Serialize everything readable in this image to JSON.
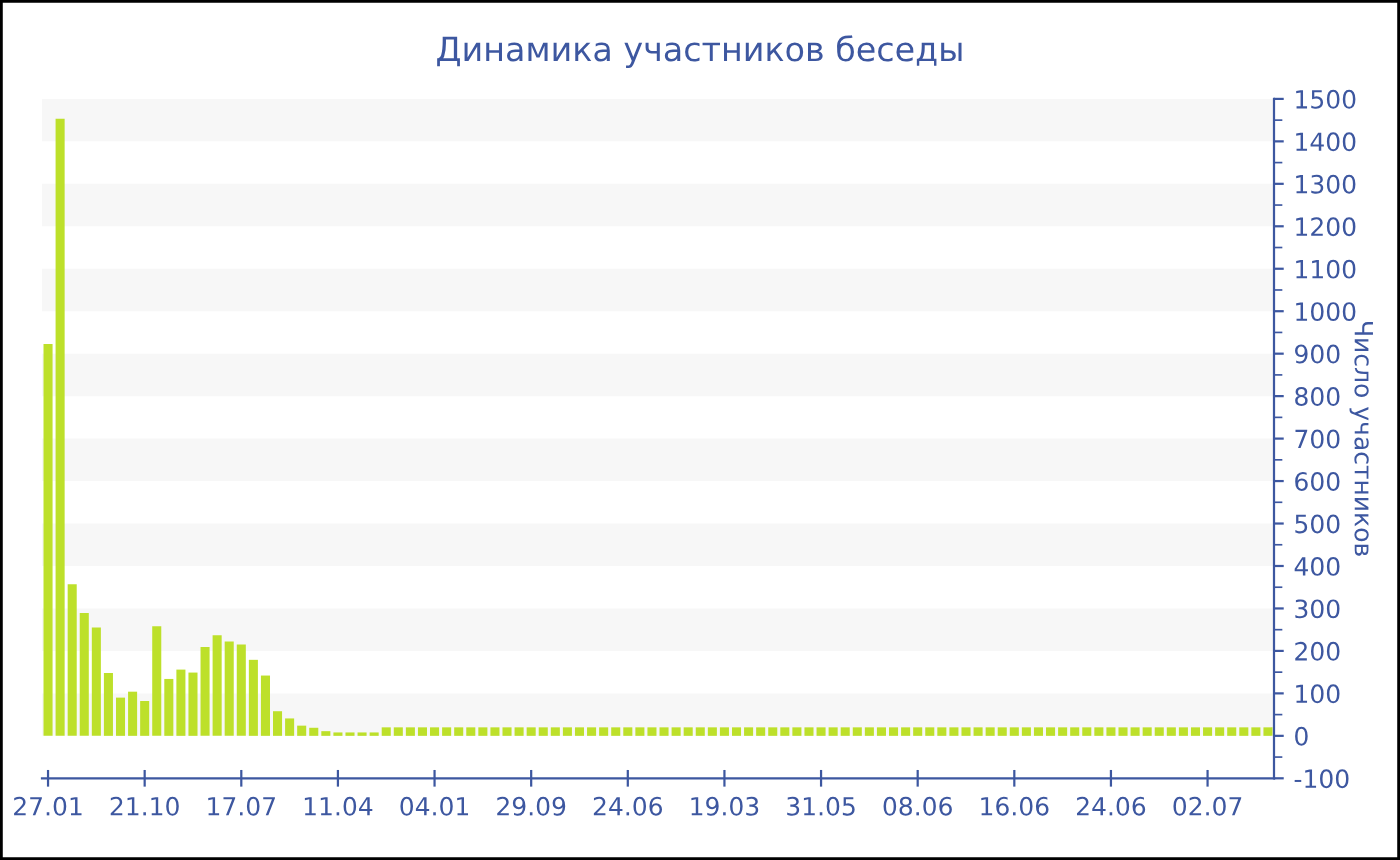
{
  "chart_data": {
    "type": "bar",
    "title": "Динамика участников беседы",
    "ylabel": "Число участников",
    "categories": [
      "27.01",
      null,
      null,
      null,
      null,
      null,
      null,
      null,
      "21.10",
      null,
      null,
      null,
      null,
      null,
      null,
      null,
      "17.07",
      null,
      null,
      null,
      null,
      null,
      null,
      null,
      "11.04",
      null,
      null,
      null,
      null,
      null,
      null,
      null,
      "04.01",
      null,
      null,
      null,
      null,
      null,
      null,
      null,
      "29.09",
      null,
      null,
      null,
      null,
      null,
      null,
      null,
      "24.06",
      null,
      null,
      null,
      null,
      null,
      null,
      null,
      "19.03",
      null,
      null,
      null,
      null,
      null,
      null,
      null,
      "31.05",
      null,
      null,
      null,
      null,
      null,
      null,
      null,
      "08.06",
      null,
      null,
      null,
      null,
      null,
      null,
      null,
      "16.06",
      null,
      null,
      null,
      null,
      null,
      null,
      null,
      "24.06",
      null,
      null,
      null,
      null,
      null,
      null,
      null,
      "02.07",
      null,
      null,
      null,
      null,
      null
    ],
    "values": [
      923,
      1453,
      357,
      289,
      255,
      148,
      90,
      104,
      82,
      258,
      134,
      156,
      149,
      209,
      237,
      222,
      215,
      179,
      142,
      58,
      41,
      24,
      19,
      11,
      8,
      8,
      8,
      8,
      20,
      20,
      20,
      20,
      20,
      20,
      20,
      20,
      20,
      20,
      20,
      20,
      20,
      20,
      20,
      20,
      20,
      20,
      20,
      20,
      20,
      20,
      20,
      20,
      20,
      20,
      20,
      20,
      20,
      20,
      20,
      20,
      20,
      20,
      20,
      20,
      20,
      20,
      20,
      20,
      20,
      20,
      20,
      20,
      20,
      20,
      20,
      20,
      20,
      20,
      20,
      20,
      20,
      20,
      20,
      20,
      20,
      20,
      20,
      20,
      20,
      20,
      20,
      20,
      20,
      20,
      20,
      20,
      20,
      20,
      20,
      20,
      20,
      20
    ],
    "color": "#bde02a",
    "ylim": [
      -100,
      1500
    ],
    "yticks": [
      -100,
      0,
      100,
      200,
      300,
      400,
      500,
      600,
      700,
      800,
      900,
      1000,
      1100,
      1200,
      1300,
      1400,
      1500
    ],
    "bands": [
      {
        "axis": "y",
        "from": 0,
        "to": 100,
        "color": "#f7f7f7"
      },
      {
        "axis": "y",
        "from": 200,
        "to": 300,
        "color": "#f7f7f7"
      },
      {
        "axis": "y",
        "from": 400,
        "to": 500,
        "color": "#f7f7f7"
      },
      {
        "axis": "y",
        "from": 600,
        "to": 700,
        "color": "#f7f7f7"
      },
      {
        "axis": "y",
        "from": 800,
        "to": 900,
        "color": "#f7f7f7"
      },
      {
        "axis": "y",
        "from": 1000,
        "to": 1100,
        "color": "#f7f7f7"
      },
      {
        "axis": "y",
        "from": 1200,
        "to": 1300,
        "color": "#f7f7f7"
      },
      {
        "axis": "y",
        "from": 1400,
        "to": 1500,
        "color": "#f7f7f7"
      }
    ],
    "grid": false,
    "legend": false
  }
}
